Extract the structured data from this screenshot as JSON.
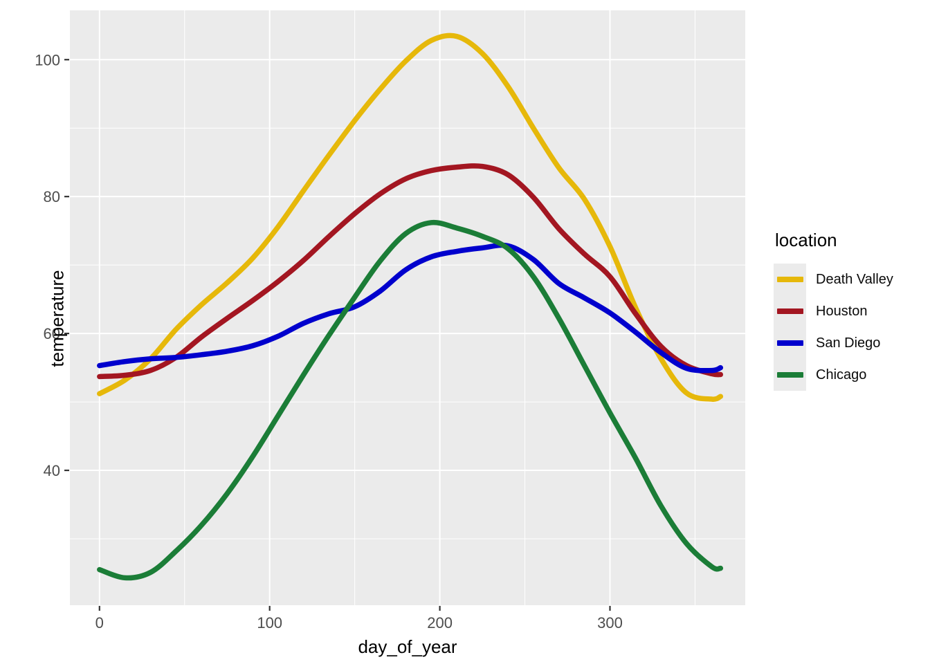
{
  "chart_data": {
    "type": "line",
    "title": "",
    "xlabel": "day_of_year",
    "ylabel": "temperature",
    "legend_title": "location",
    "legend_position": "right",
    "panel_bg": "#EBEBEB",
    "grid_color": "#FFFFFF",
    "tick_label_color": "#4D4D4D",
    "tick_mark_color": "#333333",
    "xlim": [
      -17.4,
      379.5
    ],
    "ylim": [
      20.3,
      107.2
    ],
    "x_ticks": [
      0,
      100,
      200,
      300
    ],
    "x_minor_ticks": [
      50,
      150,
      250,
      350
    ],
    "y_ticks": [
      40,
      60,
      80,
      100
    ],
    "y_minor_ticks": [
      30,
      50,
      70,
      90
    ],
    "x": [
      0,
      15,
      30,
      45,
      60,
      75,
      90,
      105,
      120,
      135,
      150,
      165,
      180,
      195,
      210,
      225,
      240,
      255,
      270,
      285,
      300,
      315,
      330,
      345,
      360,
      365
    ],
    "series": [
      {
        "name": "Death Valley",
        "color": "#E6B80A",
        "values": [
          51.2,
          53.2,
          56.3,
          60.6,
          64.2,
          67.4,
          71.0,
          75.6,
          80.9,
          86.1,
          91.1,
          95.7,
          99.8,
          102.8,
          103.4,
          100.9,
          96.1,
          90.0,
          84.2,
          79.6,
          72.7,
          63.8,
          56.3,
          51.3,
          50.4,
          50.8
        ]
      },
      {
        "name": "Houston",
        "color": "#A31621",
        "values": [
          53.7,
          53.9,
          54.6,
          56.5,
          59.5,
          62.2,
          64.8,
          67.6,
          70.7,
          74.2,
          77.5,
          80.4,
          82.6,
          83.8,
          84.3,
          84.4,
          83.2,
          79.9,
          75.3,
          71.6,
          68.3,
          62.9,
          58.1,
          55.3,
          54.1,
          54.0
        ]
      },
      {
        "name": "San Diego",
        "color": "#0000CD",
        "values": [
          55.3,
          55.9,
          56.3,
          56.5,
          56.9,
          57.4,
          58.2,
          59.6,
          61.5,
          62.9,
          63.9,
          66.2,
          69.3,
          71.2,
          72.0,
          72.5,
          72.8,
          70.8,
          67.3,
          65.2,
          63.0,
          60.2,
          57.2,
          54.9,
          54.6,
          55.0
        ]
      },
      {
        "name": "Chicago",
        "color": "#1B7D37",
        "values": [
          25.5,
          24.3,
          25.1,
          28.2,
          32.0,
          36.6,
          42.0,
          48.0,
          54.0,
          59.8,
          65.3,
          70.6,
          74.6,
          76.2,
          75.4,
          74.2,
          72.4,
          68.3,
          62.2,
          55.3,
          48.4,
          41.8,
          34.8,
          29.3,
          25.9,
          25.7
        ]
      }
    ]
  }
}
